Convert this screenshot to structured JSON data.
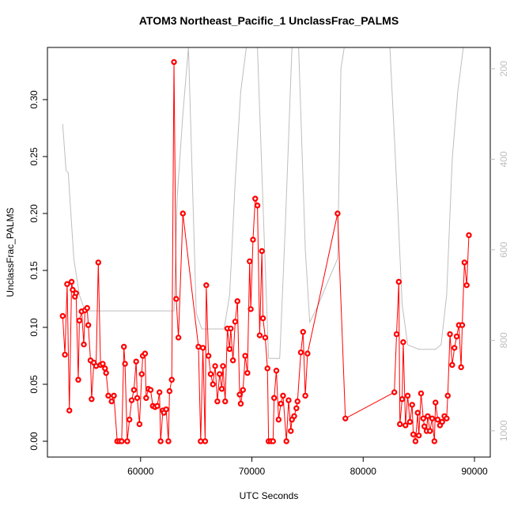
{
  "chart_data": {
    "type": "line",
    "title": "ATOM3 Northeast_Pacific_1 UnclassFrac_PALMS",
    "x_label": "UTC Seconds",
    "y_label": "UnclassFrac_PALMS",
    "xlim": [
      51630,
      91420
    ],
    "xticks": [
      60000,
      70000,
      80000,
      90000
    ],
    "ylim": [
      -0.0139,
      0.3458
    ],
    "yticks": [
      {
        "value": 0,
        "label": "0.00"
      },
      {
        "value": 0.05,
        "label": "0.05"
      },
      {
        "value": 0.1,
        "label": "0.10"
      },
      {
        "value": 0.15,
        "label": "0.15"
      },
      {
        "value": 0.2,
        "label": "0.20"
      },
      {
        "value": 0.25,
        "label": "0.25"
      },
      {
        "value": 0.3,
        "label": "0.30"
      }
    ],
    "y2lim": [
      1058,
      153
    ],
    "y2ticks": [
      200,
      400,
      600,
      800,
      1000
    ],
    "series": [
      {
        "color": "#bebebe",
        "axis": "y2",
        "x": [
          53000,
          53300,
          53500,
          54000,
          54500,
          55000,
          60000,
          63000,
          63300,
          63800,
          64300,
          65000,
          65500,
          67500,
          68000,
          68500,
          69000,
          69500,
          70500,
          71000,
          71500,
          72500,
          73000,
          73600,
          74200,
          74800,
          75200,
          76000,
          77000,
          77700,
          78000,
          78300,
          82400,
          83000,
          83500,
          84000,
          85000,
          86500,
          87000,
          87500,
          88000,
          88500,
          89000
        ],
        "values": [
          322,
          425,
          430,
          620,
          700,
          735,
          735,
          735,
          480,
          300,
          153,
          740,
          775,
          775,
          700,
          450,
          250,
          153,
          153,
          500,
          840,
          840,
          550,
          153,
          153,
          600,
          760,
          720,
          660,
          620,
          200,
          153,
          153,
          450,
          720,
          810,
          820,
          820,
          810,
          700,
          400,
          250,
          153
        ]
      },
      {
        "color": "#ff0000",
        "markers": true,
        "x": [
          53000,
          53200,
          53400,
          53600,
          53800,
          53900,
          54100,
          54200,
          54400,
          54500,
          54700,
          54900,
          55000,
          55200,
          55300,
          55500,
          55600,
          55800,
          56000,
          56200,
          56400,
          56600,
          56800,
          56900,
          57100,
          57400,
          57600,
          57900,
          58100,
          58300,
          58500,
          58600,
          58800,
          59000,
          59200,
          59400,
          59600,
          59700,
          59900,
          60100,
          60200,
          60400,
          60500,
          60700,
          60900,
          61100,
          61300,
          61500,
          61700,
          61800,
          62000,
          62100,
          62300,
          62500,
          62600,
          62800,
          63000,
          63200,
          63400,
          63800,
          65200,
          65400,
          65600,
          65800,
          65900,
          66100,
          66300,
          66500,
          66700,
          66900,
          67100,
          67300,
          67400,
          67600,
          67800,
          68000,
          68100,
          68300,
          68500,
          68700,
          68900,
          69000,
          69200,
          69400,
          69600,
          69800,
          69900,
          70100,
          70300,
          70500,
          70700,
          70900,
          71000,
          71200,
          71400,
          71500,
          71700,
          71900,
          72000,
          72200,
          72400,
          72600,
          72800,
          73100,
          73300,
          73500,
          73600,
          73800,
          74000,
          74100,
          74400,
          74600,
          74800,
          75000,
          77700,
          78400,
          82800,
          83000,
          83200,
          83300,
          83500,
          83600,
          83800,
          84000,
          84200,
          84400,
          84500,
          84700,
          84900,
          85000,
          85200,
          85400,
          85500,
          85700,
          85800,
          86000,
          86200,
          86400,
          86500,
          86700,
          86900,
          87100,
          87300,
          87500,
          87600,
          87800,
          88000,
          88200,
          88400,
          88600,
          88800,
          88900,
          89100,
          89300,
          89500
        ],
        "values": [
          0.11,
          0.076,
          0.138,
          0.027,
          0.14,
          0.133,
          0.127,
          0.13,
          0.054,
          0.106,
          0.114,
          0.085,
          0.115,
          0.117,
          0.102,
          0.071,
          0.037,
          0.069,
          0.066,
          0.157,
          0.067,
          0.068,
          0.064,
          0.06,
          0.04,
          0.035,
          0.04,
          0,
          0,
          0,
          0.083,
          0.068,
          0,
          0.019,
          0.036,
          0.045,
          0.07,
          0.038,
          0.015,
          0.059,
          0.075,
          0.077,
          0.038,
          0.046,
          0.045,
          0.031,
          0.03,
          0.031,
          0.043,
          0,
          0.027,
          0.025,
          0.028,
          0,
          0.044,
          0.054,
          0.333,
          0.125,
          0.091,
          0.2,
          0.083,
          0,
          0.082,
          0,
          0.137,
          0.075,
          0.059,
          0.05,
          0.066,
          0.035,
          0.059,
          0.046,
          0.066,
          0.035,
          0.099,
          0.081,
          0.099,
          0.071,
          0.105,
          0.123,
          0.041,
          0.033,
          0.045,
          0.075,
          0.06,
          0.158,
          0.116,
          0.177,
          0.213,
          0.207,
          0.093,
          0.167,
          0.108,
          0.091,
          0.064,
          0,
          0,
          0,
          0.038,
          0.062,
          0.019,
          0.033,
          0.04,
          0,
          0.036,
          0.009,
          0.019,
          0.022,
          0.029,
          0.035,
          0.078,
          0.096,
          0.04,
          0.077,
          0.2,
          0.02,
          0.043,
          0.094,
          0.14,
          0.015,
          0.037,
          0.087,
          0.014,
          0.04,
          0.017,
          0.032,
          0.006,
          0,
          0.025,
          0.005,
          0.042,
          0.02,
          0.013,
          0.009,
          0.022,
          0.009,
          0.02,
          0,
          0.034,
          0.019,
          0.014,
          0.017,
          0.022,
          0.02,
          0.04,
          0.094,
          0.067,
          0.082,
          0.092,
          0.102,
          0.065,
          0.102,
          0.157,
          0.137,
          0.181
        ]
      }
    ]
  }
}
